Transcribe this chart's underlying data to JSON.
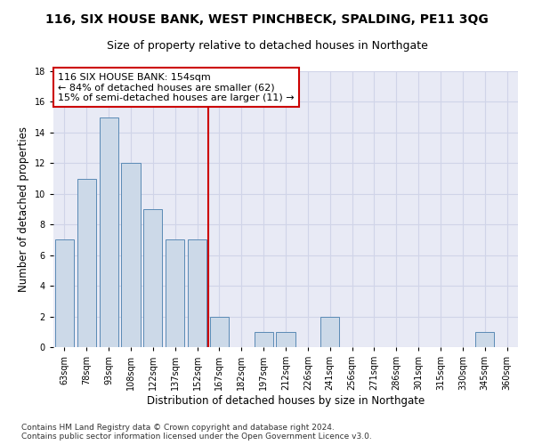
{
  "title": "116, SIX HOUSE BANK, WEST PINCHBECK, SPALDING, PE11 3QG",
  "subtitle": "Size of property relative to detached houses in Northgate",
  "xlabel": "Distribution of detached houses by size in Northgate",
  "ylabel": "Number of detached properties",
  "bar_labels": [
    "63sqm",
    "78sqm",
    "93sqm",
    "108sqm",
    "122sqm",
    "137sqm",
    "152sqm",
    "167sqm",
    "182sqm",
    "197sqm",
    "212sqm",
    "226sqm",
    "241sqm",
    "256sqm",
    "271sqm",
    "286sqm",
    "301sqm",
    "315sqm",
    "330sqm",
    "345sqm",
    "360sqm"
  ],
  "bar_values": [
    7,
    11,
    15,
    12,
    9,
    7,
    7,
    2,
    0,
    1,
    1,
    0,
    2,
    0,
    0,
    0,
    0,
    0,
    0,
    1,
    0
  ],
  "bar_color": "#ccd9e8",
  "bar_edge_color": "#5a8ab5",
  "vline_color": "#cc0000",
  "annotation_line1": "116 SIX HOUSE BANK: 154sqm",
  "annotation_line2": "← 84% of detached houses are smaller (62)",
  "annotation_line3": "15% of semi-detached houses are larger (11) →",
  "annotation_box_color": "white",
  "annotation_box_edge": "#cc0000",
  "ylim": [
    0,
    18
  ],
  "yticks": [
    0,
    2,
    4,
    6,
    8,
    10,
    12,
    14,
    16,
    18
  ],
  "grid_color": "#d0d4e8",
  "bg_color": "#e8eaf5",
  "footnote": "Contains HM Land Registry data © Crown copyright and database right 2024.\nContains public sector information licensed under the Open Government Licence v3.0.",
  "title_fontsize": 10,
  "subtitle_fontsize": 9,
  "xlabel_fontsize": 8.5,
  "ylabel_fontsize": 8.5,
  "tick_fontsize": 7,
  "annot_fontsize": 8,
  "footnote_fontsize": 6.5,
  "bar_width": 0.85
}
